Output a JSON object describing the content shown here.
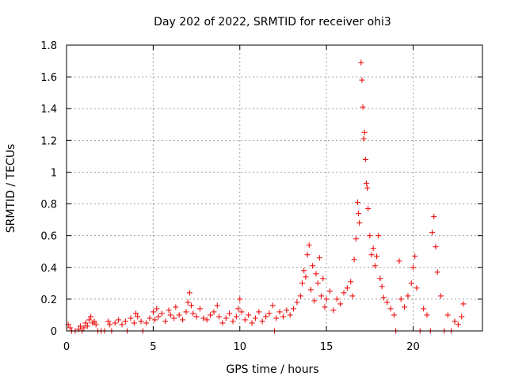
{
  "chart_data": {
    "type": "scatter",
    "title": "Day 202 of 2022, SRMTID for receiver ohi3",
    "xlabel": "GPS time / hours",
    "ylabel": "SRMTID / TECUs",
    "xlim": [
      0,
      24
    ],
    "ylim": [
      0,
      1.8
    ],
    "xticks": [
      0,
      5,
      10,
      15,
      20
    ],
    "xtick_labels": [
      "0",
      "5",
      "10",
      "15",
      "20"
    ],
    "yticks": [
      0,
      0.2,
      0.4,
      0.6,
      0.8,
      1.0,
      1.2,
      1.4,
      1.6,
      1.8
    ],
    "ytick_labels": [
      "0",
      "0.2",
      "0.4",
      "0.6",
      "0.8",
      "1",
      "1.2",
      "1.4",
      "1.6",
      "1.8"
    ],
    "grid": true,
    "marker": "+",
    "color": "#ee1111",
    "series": [
      {
        "name": "ohi3",
        "points": [
          [
            0.1,
            0.04
          ],
          [
            0.2,
            0.02
          ],
          [
            0.3,
            0.0
          ],
          [
            0.5,
            0.0
          ],
          [
            0.7,
            0.01
          ],
          [
            0.8,
            0.03
          ],
          [
            0.9,
            0.0
          ],
          [
            1.0,
            0.02
          ],
          [
            1.1,
            0.05
          ],
          [
            1.2,
            0.03
          ],
          [
            1.3,
            0.07
          ],
          [
            1.4,
            0.09
          ],
          [
            1.5,
            0.05
          ],
          [
            1.6,
            0.06
          ],
          [
            1.7,
            0.04
          ],
          [
            1.8,
            0.0
          ],
          [
            2.0,
            0.0
          ],
          [
            2.2,
            0.0
          ],
          [
            2.4,
            0.06
          ],
          [
            2.5,
            0.04
          ],
          [
            2.6,
            0.0
          ],
          [
            2.8,
            0.05
          ],
          [
            3.0,
            0.07
          ],
          [
            3.2,
            0.04
          ],
          [
            3.4,
            0.06
          ],
          [
            3.5,
            0.0
          ],
          [
            3.7,
            0.08
          ],
          [
            3.9,
            0.05
          ],
          [
            4.0,
            0.11
          ],
          [
            4.1,
            0.09
          ],
          [
            4.3,
            0.06
          ],
          [
            4.4,
            0.0
          ],
          [
            4.6,
            0.05
          ],
          [
            4.8,
            0.08
          ],
          [
            5.0,
            0.12
          ],
          [
            5.1,
            0.07
          ],
          [
            5.2,
            0.14
          ],
          [
            5.3,
            0.09
          ],
          [
            5.5,
            0.11
          ],
          [
            5.7,
            0.06
          ],
          [
            5.9,
            0.13
          ],
          [
            6.0,
            0.1
          ],
          [
            6.2,
            0.08
          ],
          [
            6.3,
            0.15
          ],
          [
            6.5,
            0.1
          ],
          [
            6.7,
            0.07
          ],
          [
            6.9,
            0.12
          ],
          [
            7.0,
            0.18
          ],
          [
            7.1,
            0.24
          ],
          [
            7.2,
            0.16
          ],
          [
            7.3,
            0.11
          ],
          [
            7.5,
            0.09
          ],
          [
            7.7,
            0.14
          ],
          [
            7.9,
            0.08
          ],
          [
            8.1,
            0.07
          ],
          [
            8.3,
            0.1
          ],
          [
            8.5,
            0.12
          ],
          [
            8.7,
            0.16
          ],
          [
            8.8,
            0.09
          ],
          [
            9.0,
            0.05
          ],
          [
            9.2,
            0.08
          ],
          [
            9.4,
            0.11
          ],
          [
            9.6,
            0.06
          ],
          [
            9.8,
            0.09
          ],
          [
            9.9,
            0.14
          ],
          [
            10.0,
            0.2
          ],
          [
            10.1,
            0.12
          ],
          [
            10.3,
            0.07
          ],
          [
            10.5,
            0.1
          ],
          [
            10.7,
            0.05
          ],
          [
            10.9,
            0.08
          ],
          [
            11.1,
            0.12
          ],
          [
            11.3,
            0.06
          ],
          [
            11.5,
            0.09
          ],
          [
            11.7,
            0.11
          ],
          [
            11.9,
            0.16
          ],
          [
            12.0,
            0.0
          ],
          [
            12.1,
            0.08
          ],
          [
            12.3,
            0.12
          ],
          [
            12.5,
            0.09
          ],
          [
            12.7,
            0.13
          ],
          [
            12.9,
            0.1
          ],
          [
            13.1,
            0.14
          ],
          [
            13.3,
            0.18
          ],
          [
            13.5,
            0.22
          ],
          [
            13.6,
            0.3
          ],
          [
            13.7,
            0.38
          ],
          [
            13.8,
            0.34
          ],
          [
            13.9,
            0.48
          ],
          [
            14.0,
            0.54
          ],
          [
            14.1,
            0.26
          ],
          [
            14.2,
            0.41
          ],
          [
            14.3,
            0.19
          ],
          [
            14.4,
            0.36
          ],
          [
            14.5,
            0.3
          ],
          [
            14.6,
            0.46
          ],
          [
            14.7,
            0.22
          ],
          [
            14.8,
            0.33
          ],
          [
            14.9,
            0.15
          ],
          [
            15.0,
            0.2
          ],
          [
            15.2,
            0.25
          ],
          [
            15.4,
            0.13
          ],
          [
            15.6,
            0.2
          ],
          [
            15.8,
            0.17
          ],
          [
            16.0,
            0.24
          ],
          [
            16.2,
            0.27
          ],
          [
            16.4,
            0.31
          ],
          [
            16.5,
            0.22
          ],
          [
            16.6,
            0.45
          ],
          [
            16.7,
            0.58
          ],
          [
            16.8,
            0.81
          ],
          [
            16.85,
            0.74
          ],
          [
            16.9,
            0.68
          ],
          [
            17.0,
            1.69
          ],
          [
            17.05,
            1.58
          ],
          [
            17.1,
            1.41
          ],
          [
            17.15,
            1.21
          ],
          [
            17.2,
            1.25
          ],
          [
            17.25,
            1.08
          ],
          [
            17.3,
            0.93
          ],
          [
            17.35,
            0.9
          ],
          [
            17.4,
            0.77
          ],
          [
            17.5,
            0.6
          ],
          [
            17.6,
            0.48
          ],
          [
            17.7,
            0.52
          ],
          [
            17.8,
            0.41
          ],
          [
            17.9,
            0.47
          ],
          [
            18.0,
            0.6
          ],
          [
            18.1,
            0.33
          ],
          [
            18.2,
            0.28
          ],
          [
            18.3,
            0.21
          ],
          [
            18.5,
            0.18
          ],
          [
            18.7,
            0.14
          ],
          [
            18.9,
            0.1
          ],
          [
            19.0,
            0.0
          ],
          [
            19.2,
            0.44
          ],
          [
            19.3,
            0.2
          ],
          [
            19.5,
            0.15
          ],
          [
            19.7,
            0.22
          ],
          [
            19.9,
            0.3
          ],
          [
            20.0,
            0.4
          ],
          [
            20.1,
            0.47
          ],
          [
            20.2,
            0.27
          ],
          [
            20.4,
            0.0
          ],
          [
            20.6,
            0.14
          ],
          [
            20.8,
            0.1
          ],
          [
            21.0,
            0.0
          ],
          [
            21.1,
            0.62
          ],
          [
            21.2,
            0.72
          ],
          [
            21.3,
            0.53
          ],
          [
            21.4,
            0.37
          ],
          [
            21.6,
            0.22
          ],
          [
            21.8,
            0.0
          ],
          [
            22.0,
            0.1
          ],
          [
            22.2,
            0.0
          ],
          [
            22.4,
            0.06
          ],
          [
            22.6,
            0.04
          ],
          [
            22.8,
            0.09
          ],
          [
            22.9,
            0.17
          ]
        ]
      }
    ]
  }
}
